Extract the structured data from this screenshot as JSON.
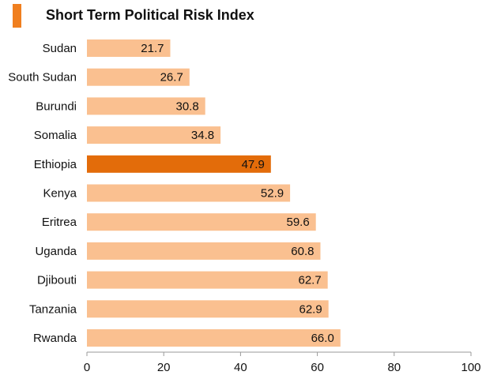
{
  "chart_data": {
    "type": "bar",
    "orientation": "horizontal",
    "title": "Short Term Political Risk Index",
    "categories": [
      "Sudan",
      "South Sudan",
      "Burundi",
      "Somalia",
      "Ethiopia",
      "Kenya",
      "Eritrea",
      "Uganda",
      "Djibouti",
      "Tanzania",
      "Rwanda"
    ],
    "values": [
      21.7,
      26.7,
      30.8,
      34.8,
      47.9,
      52.9,
      59.6,
      60.8,
      62.7,
      62.9,
      66.0
    ],
    "value_labels": [
      "21.7",
      "26.7",
      "30.8",
      "34.8",
      "47.9",
      "52.9",
      "59.6",
      "60.8",
      "62.7",
      "62.9",
      "66.0"
    ],
    "highlight_category": "Ethiopia",
    "xlim": [
      0,
      100
    ],
    "xticks": [
      0,
      20,
      40,
      60,
      80,
      100
    ],
    "xlabel": "",
    "ylabel": "",
    "grid": false,
    "legend": "none"
  },
  "colors": {
    "bar": "#FAC090",
    "highlight": "#E36C0A",
    "accent": "#F07F1F",
    "axis": "#999999",
    "text": "#111111"
  }
}
